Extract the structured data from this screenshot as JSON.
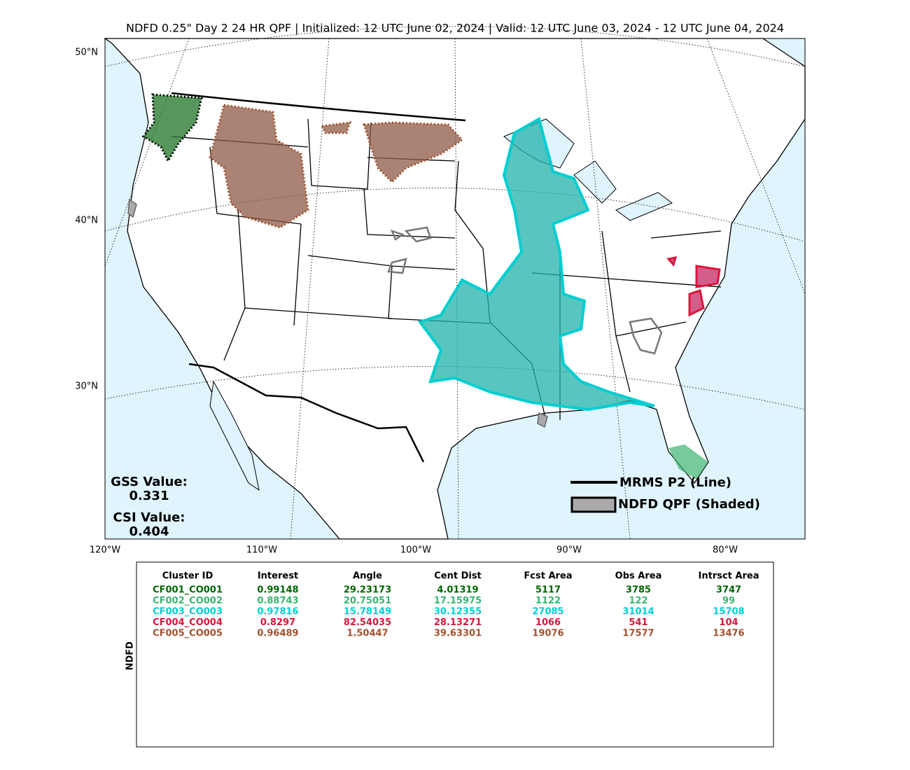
{
  "header": {
    "title": "NDFD 0.25\" Day 2 24 HR QPF | Initialized: 12 UTC June 02, 2024 | Valid: 12 UTC June 03, 2024 - 12 UTC June 04, 2024"
  },
  "map": {
    "lat_labels": [
      "50°N",
      "40°N",
      "30°N"
    ],
    "lon_labels": [
      "120°W",
      "110°W",
      "100°W",
      "90°W",
      "80°W"
    ],
    "stats": [
      {
        "label": "GSS Value:",
        "value": "0.331"
      },
      {
        "label": "CSI Value:",
        "value": "0.404"
      }
    ],
    "legend": [
      "MRMS P2 (Line)",
      "NDFD QPF (Shaded)"
    ]
  },
  "table": {
    "side_label": "NDFD",
    "columns": [
      "Cluster ID",
      "Interest",
      "Angle",
      "Cent Dist",
      "Fcst Area",
      "Obs Area",
      "Intrsct Area"
    ],
    "rows": [
      {
        "color": "#006400",
        "cells": [
          "CF001_CO001",
          "0.99148",
          "29.23173",
          "4.01319",
          "5117",
          "3785",
          "3747"
        ]
      },
      {
        "color": "#3cb371",
        "cells": [
          "CF002_CO002",
          "0.88743",
          "20.75051",
          "17.15975",
          "1122",
          "122",
          "99"
        ]
      },
      {
        "color": "#00ced1",
        "cells": [
          "CF003_CO003",
          "0.97816",
          "15.78149",
          "30.12355",
          "27085",
          "31014",
          "15708"
        ]
      },
      {
        "color": "#dc143c",
        "cells": [
          "CF004_CO004",
          "0.8297",
          "82.54035",
          "28.13271",
          "1066",
          "541",
          "104"
        ]
      },
      {
        "color": "#a0522d",
        "cells": [
          "CF005_CO005",
          "0.96489",
          "1.50447",
          "39.63301",
          "19076",
          "17577",
          "13476"
        ]
      }
    ]
  }
}
